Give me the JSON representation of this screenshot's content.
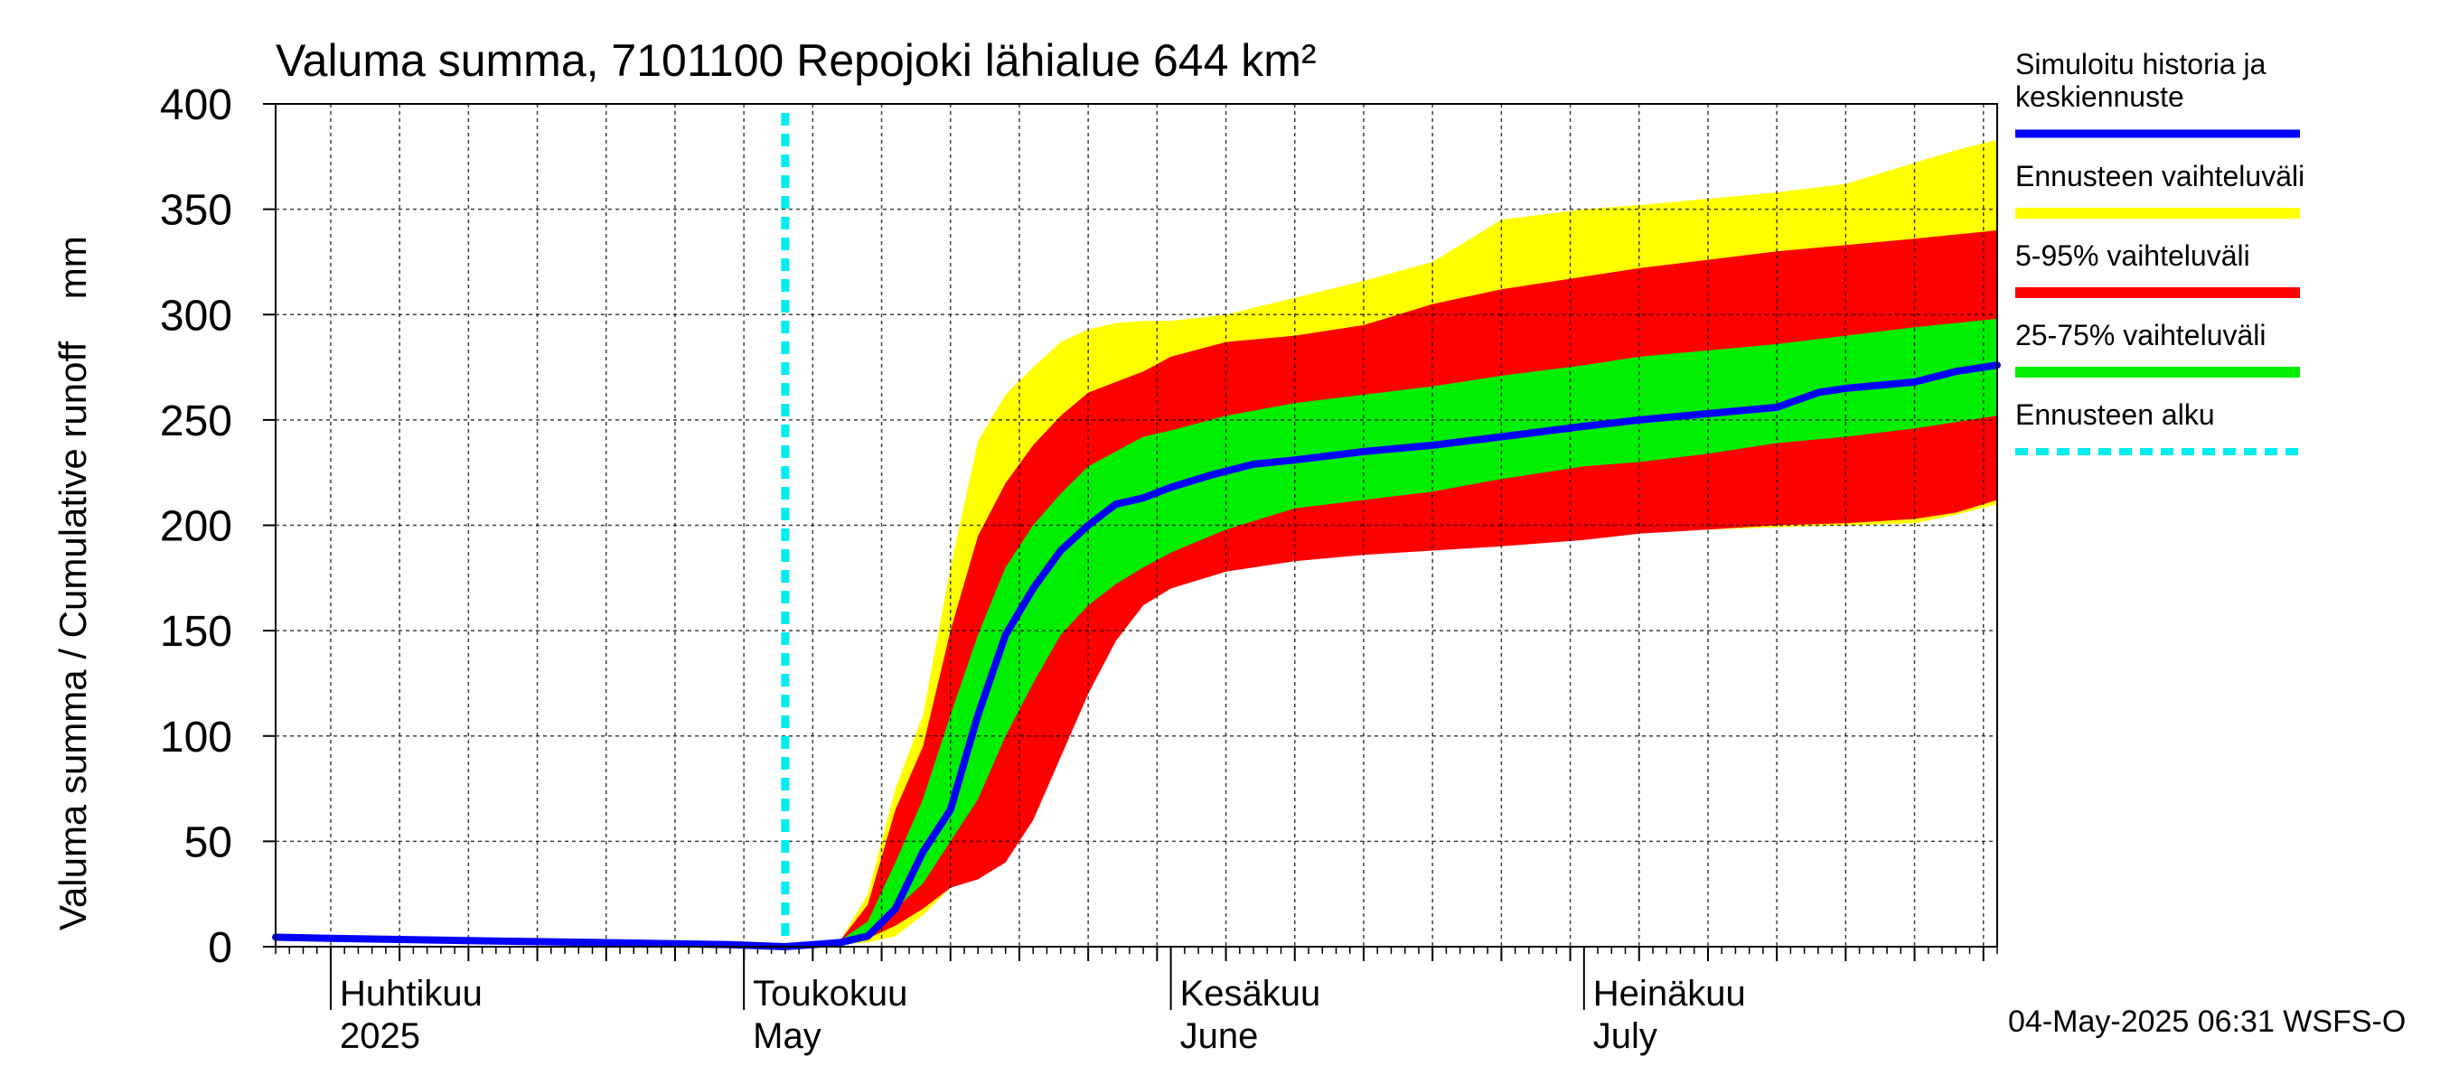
{
  "chart_data": {
    "type": "area",
    "title": "Valuma summa, 7101100 Repojoki lähialue 644 km²",
    "ylabel": "Valuma summa / Cumulative runoff    mm",
    "ylim": [
      0,
      400
    ],
    "yticks": [
      0,
      50,
      100,
      150,
      200,
      250,
      300,
      350,
      400
    ],
    "xlim": [
      "2025-03-28",
      "2025-07-31"
    ],
    "month_labels": [
      {
        "date": "2025-04-01",
        "fi": "Huhtikuu",
        "en": "2025"
      },
      {
        "date": "2025-05-01",
        "fi": "Toukokuu",
        "en": "May"
      },
      {
        "date": "2025-06-01",
        "fi": "Kesäkuu",
        "en": "June"
      },
      {
        "date": "2025-07-01",
        "fi": "Heinäkuu",
        "en": "July"
      }
    ],
    "forecast_start": "2025-05-04",
    "legend": [
      {
        "label": "Simuloitu historia ja keskiennuste",
        "color": "#0000ff",
        "style": "line"
      },
      {
        "label": "Ennusteen vaihteluväli",
        "color": "#ffff00",
        "style": "band"
      },
      {
        "label": "5-95% vaihteluväli",
        "color": "#ff0000",
        "style": "band"
      },
      {
        "label": "25-75% vaihteluväli",
        "color": "#00ee00",
        "style": "band"
      },
      {
        "label": "Ennusteen alku",
        "color": "#00eeee",
        "style": "dashed"
      }
    ],
    "legend_position": "right",
    "grid": true,
    "footer": "04-May-2025 06:31 WSFS-O",
    "series": [
      {
        "name": "Ennusteen vaihteluväli",
        "color": "#ffff00",
        "band": true,
        "x": [
          "2025-05-04",
          "2025-05-08",
          "2025-05-10",
          "2025-05-12",
          "2025-05-14",
          "2025-05-16",
          "2025-05-18",
          "2025-05-20",
          "2025-05-22",
          "2025-05-24",
          "2025-05-26",
          "2025-05-28",
          "2025-05-30",
          "2025-06-01",
          "2025-06-05",
          "2025-06-10",
          "2025-06-15",
          "2025-06-20",
          "2025-06-25",
          "2025-07-01",
          "2025-07-05",
          "2025-07-10",
          "2025-07-15",
          "2025-07-20",
          "2025-07-25",
          "2025-07-28",
          "2025-07-31"
        ],
        "low": [
          0,
          1,
          2,
          5,
          15,
          28,
          38,
          50,
          75,
          105,
          135,
          155,
          168,
          173,
          180,
          185,
          187,
          190,
          193,
          195,
          197,
          198,
          199,
          200,
          201,
          205,
          210
        ],
        "high": [
          0,
          3,
          25,
          75,
          110,
          180,
          240,
          262,
          275,
          287,
          293,
          296,
          297,
          297,
          300,
          308,
          316,
          325,
          345,
          350,
          352,
          355,
          358,
          362,
          372,
          378,
          383
        ]
      },
      {
        "name": "5-95% vaihteluväli",
        "color": "#ff0000",
        "band": true,
        "x": [
          "2025-05-04",
          "2025-05-08",
          "2025-05-10",
          "2025-05-12",
          "2025-05-14",
          "2025-05-16",
          "2025-05-18",
          "2025-05-20",
          "2025-05-22",
          "2025-05-24",
          "2025-05-26",
          "2025-05-28",
          "2025-05-30",
          "2025-06-01",
          "2025-06-05",
          "2025-06-10",
          "2025-06-15",
          "2025-06-20",
          "2025-06-25",
          "2025-07-01",
          "2025-07-05",
          "2025-07-10",
          "2025-07-15",
          "2025-07-20",
          "2025-07-25",
          "2025-07-28",
          "2025-07-31"
        ],
        "low": [
          0,
          1,
          4,
          10,
          18,
          28,
          32,
          40,
          60,
          90,
          120,
          145,
          162,
          170,
          178,
          183,
          186,
          188,
          190,
          193,
          196,
          198,
          200,
          201,
          203,
          206,
          212
        ],
        "high": [
          0,
          3,
          20,
          65,
          95,
          150,
          195,
          220,
          238,
          252,
          263,
          268,
          273,
          280,
          287,
          290,
          295,
          305,
          312,
          318,
          322,
          326,
          330,
          333,
          336,
          338,
          340
        ]
      },
      {
        "name": "25-75% vaihteluväli",
        "color": "#00ee00",
        "band": true,
        "x": [
          "2025-05-04",
          "2025-05-08",
          "2025-05-10",
          "2025-05-12",
          "2025-05-14",
          "2025-05-16",
          "2025-05-18",
          "2025-05-20",
          "2025-05-22",
          "2025-05-24",
          "2025-05-26",
          "2025-05-28",
          "2025-05-30",
          "2025-06-01",
          "2025-06-05",
          "2025-06-10",
          "2025-06-15",
          "2025-06-20",
          "2025-06-25",
          "2025-07-01",
          "2025-07-05",
          "2025-07-10",
          "2025-07-15",
          "2025-07-20",
          "2025-07-25",
          "2025-07-28",
          "2025-07-31"
        ],
        "low": [
          0,
          1,
          6,
          18,
          30,
          50,
          70,
          100,
          125,
          148,
          162,
          172,
          180,
          187,
          198,
          208,
          212,
          216,
          222,
          228,
          230,
          234,
          239,
          242,
          246,
          249,
          252
        ],
        "high": [
          0,
          3,
          12,
          40,
          70,
          110,
          148,
          180,
          200,
          215,
          228,
          235,
          242,
          245,
          252,
          258,
          262,
          266,
          271,
          276,
          280,
          283,
          286,
          290,
          294,
          296,
          298
        ]
      },
      {
        "name": "Simuloitu historia ja keskiennuste",
        "color": "#0000ff",
        "band": false,
        "x": [
          "2025-03-28",
          "2025-04-01",
          "2025-04-10",
          "2025-04-20",
          "2025-04-30",
          "2025-05-04",
          "2025-05-06",
          "2025-05-08",
          "2025-05-10",
          "2025-05-12",
          "2025-05-14",
          "2025-05-16",
          "2025-05-18",
          "2025-05-20",
          "2025-05-22",
          "2025-05-24",
          "2025-05-26",
          "2025-05-28",
          "2025-05-30",
          "2025-06-01",
          "2025-06-04",
          "2025-06-07",
          "2025-06-10",
          "2025-06-15",
          "2025-06-20",
          "2025-06-25",
          "2025-07-01",
          "2025-07-05",
          "2025-07-10",
          "2025-07-15",
          "2025-07-18",
          "2025-07-20",
          "2025-07-25",
          "2025-07-28",
          "2025-07-31"
        ],
        "y": [
          4.5,
          4,
          3,
          2,
          1,
          0,
          1,
          2,
          5,
          18,
          45,
          65,
          110,
          148,
          170,
          188,
          200,
          210,
          213,
          218,
          224,
          229,
          231,
          235,
          238,
          242,
          247,
          250,
          253,
          256,
          263,
          265,
          268,
          273,
          276
        ]
      }
    ]
  }
}
